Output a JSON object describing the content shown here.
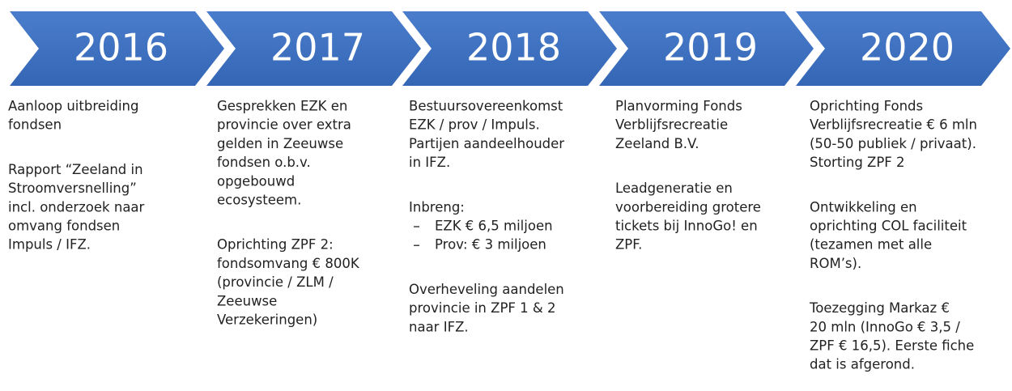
{
  "steps": [
    {
      "year": "2016",
      "blocks": [
        {
          "lines": [
            "Aanloop uitbreiding",
            "fondsen"
          ]
        },
        {
          "lines": [
            "Rapport “Zeeland in",
            "Stroomversnelling”",
            "incl. onderzoek naar",
            "omvang fondsen",
            "Impuls / IFZ."
          ]
        }
      ]
    },
    {
      "year": "2017",
      "blocks": [
        {
          "lines": [
            "Gesprekken EZK en",
            "provincie over extra",
            "gelden in Zeeuwse",
            "fondsen o.b.v.",
            "opgebouwd",
            "ecosysteem."
          ]
        },
        {
          "lines": [
            "Oprichting ZPF 2:",
            "fondsomvang € 800K",
            "(provincie / ZLM /",
            "Zeeuwse",
            "Verzekeringen)"
          ]
        }
      ]
    },
    {
      "year": "2018",
      "blocks": [
        {
          "lines": [
            "Bestuursovereenkomst",
            "EZK / prov / Impuls.",
            "Partijen aandeelhouder",
            "in IFZ."
          ]
        },
        {
          "lines": [
            "Inbreng:"
          ],
          "bullets": [
            "EZK € 6,5 miljoen",
            "Prov: € 3 miljoen"
          ]
        },
        {
          "lines": [
            "Overheveling aandelen",
            "provincie in ZPF 1 & 2",
            "naar IFZ."
          ]
        }
      ]
    },
    {
      "year": "2019",
      "blocks": [
        {
          "lines": [
            "Planvorming Fonds",
            "Verblijfsrecreatie",
            "Zeeland B.V."
          ]
        },
        {
          "lines": [
            "Leadgeneratie en",
            "voorbereiding grotere",
            "tickets bij InnoGo! en",
            "ZPF."
          ]
        }
      ]
    },
    {
      "year": "2020",
      "blocks": [
        {
          "lines": [
            "Oprichting Fonds",
            "Verblijfsrecreatie € 6 mln",
            "(50-50 publiek / privaat).",
            "Storting ZPF 2"
          ]
        },
        {
          "lines": [
            "Ontwikkeling en",
            "oprichting COL faciliteit",
            "(tezamen met alle",
            "ROM’s)."
          ]
        },
        {
          "lines": [
            "Toezegging Markaz €",
            "20 mln (InnoGo € 3,5 /",
            "ZPF € 16,5). Eerste fiche",
            "dat is afgerond."
          ]
        }
      ]
    }
  ]
}
